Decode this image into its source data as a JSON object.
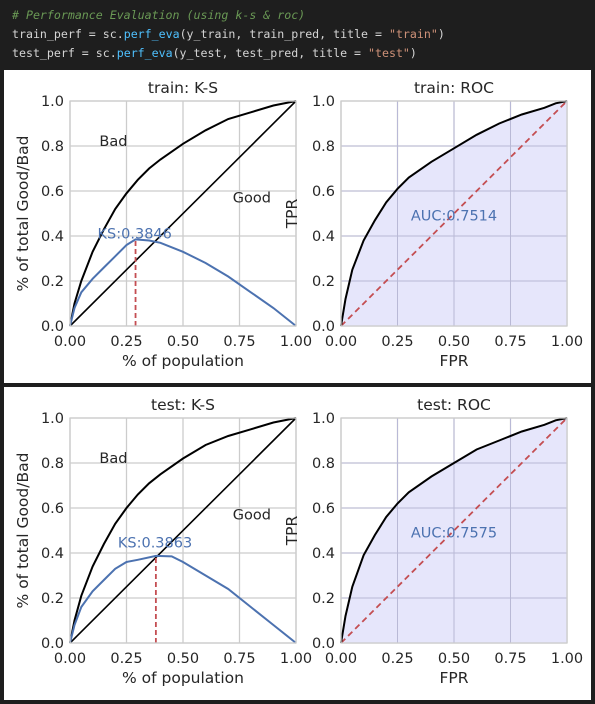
{
  "code": {
    "comment": "# Performance Evaluation (using k-s & roc)",
    "line1": {
      "var": "train_perf",
      "eq": " = ",
      "mod": "sc.",
      "fn": "perf_eva",
      "args": "(y_train, train_pred, title = ",
      "str": "\"train\"",
      "close": ")"
    },
    "line2": {
      "var": "test_perf",
      "eq": " = ",
      "mod": "sc.",
      "fn": "perf_eva",
      "args": "(y_test, test_pred, title = ",
      "str": "\"test\"",
      "close": ")"
    }
  },
  "colors": {
    "cum": "#000000",
    "ks": "#4c72b0",
    "ks_line": "#c44e52",
    "roc": "#000000",
    "roc_fill": "#e3e3fb",
    "diag": "#c44e52",
    "grid": "#cccccc"
  },
  "chart_data": [
    {
      "type": "line",
      "title": "train: K-S",
      "xlabel": "% of population",
      "ylabel": "% of total Good/Bad",
      "xlim": [
        0,
        1
      ],
      "ylim": [
        0,
        1
      ],
      "xticks": [
        "0.00",
        "0.25",
        "0.50",
        "0.75",
        "1.00"
      ],
      "yticks": [
        "0.0",
        "0.2",
        "0.4",
        "0.6",
        "0.8",
        "1.0"
      ],
      "grid": true,
      "annotations": [
        "Bad",
        "Good"
      ],
      "ks_label": "KS:0.3846",
      "ks_x": 0.29,
      "ks_y": 0.385,
      "series": [
        {
          "role": "bad",
          "x": [
            0,
            0.02,
            0.05,
            0.1,
            0.15,
            0.2,
            0.25,
            0.3,
            0.35,
            0.4,
            0.5,
            0.6,
            0.7,
            0.8,
            0.9,
            1.0
          ],
          "y": [
            0,
            0.1,
            0.2,
            0.33,
            0.43,
            0.52,
            0.59,
            0.65,
            0.7,
            0.74,
            0.81,
            0.87,
            0.92,
            0.95,
            0.98,
            1.0
          ]
        },
        {
          "role": "good",
          "x": [
            0,
            1
          ],
          "y": [
            0,
            1
          ]
        },
        {
          "role": "ks",
          "x": [
            0,
            0.02,
            0.05,
            0.1,
            0.15,
            0.2,
            0.25,
            0.29,
            0.35,
            0.4,
            0.5,
            0.6,
            0.7,
            0.8,
            0.9,
            1.0
          ],
          "y": [
            0,
            0.08,
            0.15,
            0.21,
            0.26,
            0.31,
            0.36,
            0.385,
            0.38,
            0.37,
            0.33,
            0.28,
            0.22,
            0.15,
            0.08,
            0
          ]
        }
      ]
    },
    {
      "type": "area",
      "title": "train: ROC",
      "xlabel": "FPR",
      "ylabel": "TPR",
      "xlim": [
        0,
        1
      ],
      "ylim": [
        0,
        1
      ],
      "xticks": [
        "0.00",
        "0.25",
        "0.50",
        "0.75",
        "1.00"
      ],
      "yticks": [
        "0.0",
        "0.2",
        "0.4",
        "0.6",
        "0.8",
        "1.0"
      ],
      "grid": true,
      "auc_label": "AUC:0.7514",
      "x": [
        0,
        0.02,
        0.05,
        0.1,
        0.15,
        0.2,
        0.25,
        0.3,
        0.4,
        0.5,
        0.6,
        0.7,
        0.8,
        0.9,
        0.95,
        1.0
      ],
      "y": [
        0,
        0.12,
        0.25,
        0.38,
        0.47,
        0.55,
        0.61,
        0.66,
        0.73,
        0.79,
        0.85,
        0.9,
        0.94,
        0.97,
        0.99,
        1.0
      ]
    },
    {
      "type": "line",
      "title": "test: K-S",
      "xlabel": "% of population",
      "ylabel": "% of total Good/Bad",
      "xlim": [
        0,
        1
      ],
      "ylim": [
        0,
        1
      ],
      "xticks": [
        "0.00",
        "0.25",
        "0.50",
        "0.75",
        "1.00"
      ],
      "yticks": [
        "0.0",
        "0.2",
        "0.4",
        "0.6",
        "0.8",
        "1.0"
      ],
      "grid": true,
      "annotations": [
        "Bad",
        "Good"
      ],
      "ks_label": "KS:0.3863",
      "ks_x": 0.38,
      "ks_y": 0.387,
      "series": [
        {
          "role": "bad",
          "x": [
            0,
            0.02,
            0.05,
            0.1,
            0.15,
            0.2,
            0.25,
            0.3,
            0.35,
            0.4,
            0.5,
            0.6,
            0.7,
            0.8,
            0.9,
            1.0
          ],
          "y": [
            0,
            0.1,
            0.21,
            0.34,
            0.44,
            0.53,
            0.6,
            0.66,
            0.71,
            0.75,
            0.82,
            0.88,
            0.92,
            0.95,
            0.98,
            1.0
          ]
        },
        {
          "role": "good",
          "x": [
            0,
            1
          ],
          "y": [
            0,
            1
          ]
        },
        {
          "role": "ks",
          "x": [
            0,
            0.02,
            0.05,
            0.1,
            0.15,
            0.2,
            0.25,
            0.3,
            0.38,
            0.45,
            0.5,
            0.6,
            0.7,
            0.8,
            0.9,
            1.0
          ],
          "y": [
            0,
            0.08,
            0.16,
            0.23,
            0.28,
            0.33,
            0.36,
            0.37,
            0.387,
            0.385,
            0.36,
            0.3,
            0.24,
            0.16,
            0.08,
            0
          ]
        }
      ]
    },
    {
      "type": "area",
      "title": "test: ROC",
      "xlabel": "FPR",
      "ylabel": "TPR",
      "xlim": [
        0,
        1
      ],
      "ylim": [
        0,
        1
      ],
      "xticks": [
        "0.00",
        "0.25",
        "0.50",
        "0.75",
        "1.00"
      ],
      "yticks": [
        "0.0",
        "0.2",
        "0.4",
        "0.6",
        "0.8",
        "1.0"
      ],
      "grid": true,
      "auc_label": "AUC:0.7575",
      "x": [
        0,
        0.02,
        0.05,
        0.1,
        0.15,
        0.2,
        0.25,
        0.3,
        0.4,
        0.5,
        0.6,
        0.7,
        0.8,
        0.9,
        0.95,
        1.0
      ],
      "y": [
        0,
        0.12,
        0.25,
        0.39,
        0.48,
        0.56,
        0.62,
        0.67,
        0.74,
        0.8,
        0.86,
        0.9,
        0.94,
        0.97,
        0.99,
        1.0
      ]
    }
  ]
}
